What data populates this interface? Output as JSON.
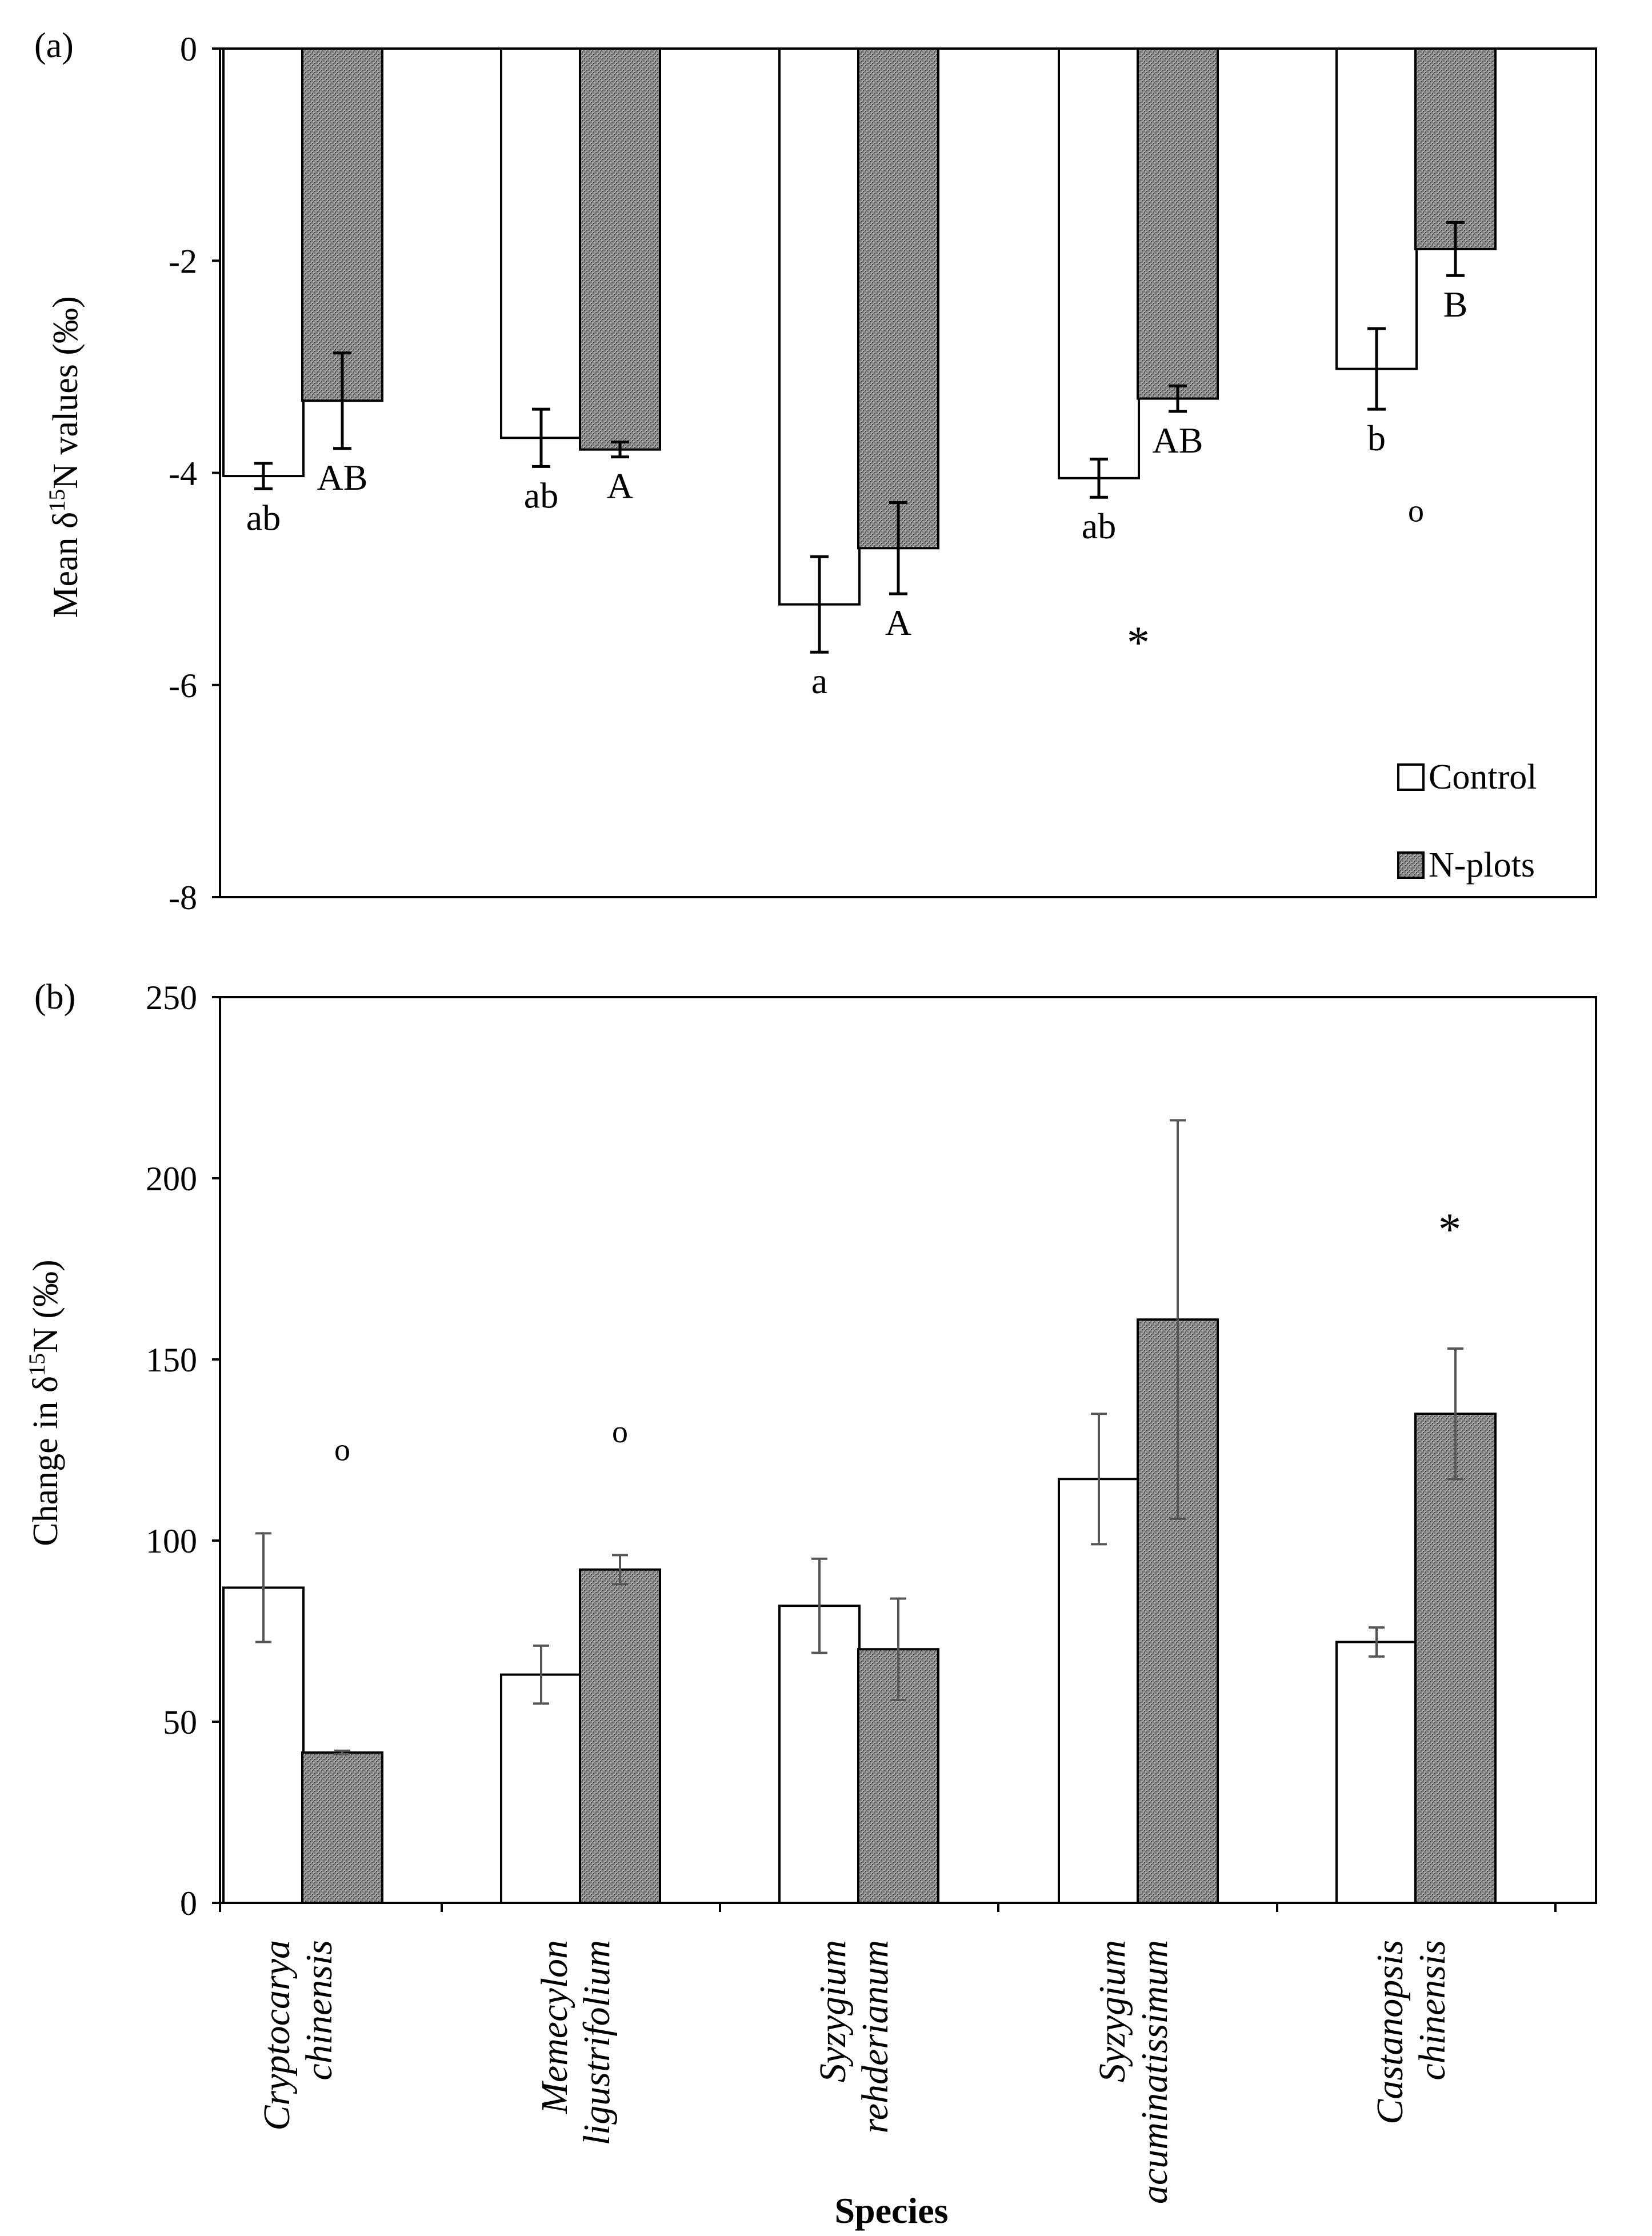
{
  "colors": {
    "control_fill": "#ffffff",
    "nplots_fill": "#8a8a8a",
    "stroke": "#000000",
    "errbar_b": "#555555"
  },
  "species": [
    [
      "Cryptocarya",
      "chinensis"
    ],
    [
      "Memecylon",
      "ligustrifolium"
    ],
    [
      "Syzygium",
      "rehderianum"
    ],
    [
      "Syzygium",
      "acuminatissimum"
    ],
    [
      "Castanopsis",
      "chinensis"
    ]
  ],
  "xlabel": "Species",
  "chart_data": [
    {
      "type": "bar",
      "panel_label": "(a)",
      "ylabel": "Mean δ15N values (‰)",
      "ylim": [
        -8,
        0
      ],
      "yticks": [
        0,
        -2,
        -4,
        -6,
        -8
      ],
      "categories": [
        "Cryptocarya chinensis",
        "Memecylon ligustrifolium",
        "Syzygium rehderianum",
        "Syzygium acuminatissimum",
        "Castanopsis chinensis"
      ],
      "series": [
        {
          "name": "Control",
          "values": [
            -4.03,
            -3.67,
            -5.24,
            -4.05,
            -3.02
          ],
          "errors": [
            0.12,
            0.27,
            0.45,
            0.18,
            0.38
          ],
          "letters": [
            "ab",
            "ab",
            "a",
            "ab",
            "b"
          ]
        },
        {
          "name": "N-plots",
          "values": [
            -3.32,
            -3.78,
            -4.71,
            -3.3,
            -1.89
          ],
          "errors": [
            0.45,
            0.07,
            0.43,
            0.12,
            0.25
          ],
          "letters": [
            "AB",
            "A",
            "A",
            "AB",
            "B"
          ]
        }
      ],
      "annotations": [
        {
          "text": "*",
          "category": 3,
          "value": -5.5
        },
        {
          "text": "o",
          "category": 4,
          "value": -4.35
        }
      ],
      "legend": {
        "placement": "bottom-right",
        "entries": [
          "Control",
          "N-plots"
        ]
      }
    },
    {
      "type": "bar",
      "panel_label": "(b)",
      "ylabel": "Change in δ15N (‰)",
      "ylim": [
        0,
        250
      ],
      "yticks": [
        0,
        50,
        100,
        150,
        200,
        250
      ],
      "categories": [
        "Cryptocarya chinensis",
        "Memecylon ligustrifolium",
        "Syzygium rehderianum",
        "Syzygium acuminatissimum",
        "Castanopsis chinensis"
      ],
      "series": [
        {
          "name": "Control",
          "values": [
            87,
            63,
            82,
            117,
            72
          ],
          "errors": [
            15,
            8,
            13,
            18,
            4
          ]
        },
        {
          "name": "N-plots",
          "values": [
            41.5,
            92,
            70,
            161,
            135
          ],
          "errors": [
            0.5,
            4,
            14,
            55,
            18
          ]
        }
      ],
      "annotations": [
        {
          "text": "o",
          "category": 0,
          "value": 125
        },
        {
          "text": "o",
          "category": 1,
          "value": 130
        },
        {
          "text": "*",
          "category": 4,
          "value": 188
        }
      ]
    }
  ]
}
